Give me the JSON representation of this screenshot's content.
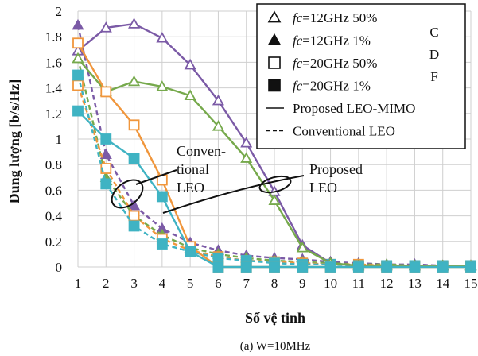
{
  "chart_data": {
    "type": "line",
    "xlabel": "Số vệ tinh",
    "ylabel": "Dung lượng [b/s/Hz]",
    "caption": "(a) W=10MHz",
    "x": [
      1,
      2,
      3,
      4,
      5,
      6,
      7,
      8,
      9,
      10,
      11,
      12,
      13,
      14,
      15
    ],
    "xlim": [
      1,
      15
    ],
    "ylim": [
      0,
      2
    ],
    "yticks": [
      "0",
      "0.2",
      "0.4",
      "0.6",
      "0.8",
      "1",
      "1.2",
      "1.4",
      "1.6",
      "1.8",
      "2"
    ],
    "xticks": [
      "1",
      "2",
      "3",
      "4",
      "5",
      "6",
      "7",
      "8",
      "9",
      "10",
      "11",
      "12",
      "13",
      "14",
      "15"
    ],
    "grid": true,
    "legend_position": "top-right",
    "legend": [
      {
        "label": "fc=12GHz 50%",
        "fc": "fc",
        "rest": "=12GHz 50%",
        "marker": "open-triangle",
        "style": "marker"
      },
      {
        "label": "fc=12GHz 1%",
        "fc": "fc",
        "rest": "=12GHz 1%",
        "marker": "filled-triangle",
        "style": "marker"
      },
      {
        "label": "fc=20GHz 50%",
        "fc": "fc",
        "rest": "=20GHz 50%",
        "marker": "open-square",
        "style": "marker"
      },
      {
        "label": "fc=20GHz 1%",
        "fc": "fc",
        "rest": "=20GHz 1%",
        "marker": "filled-square",
        "style": "marker"
      },
      {
        "label": "Proposed LEO-MIMO",
        "marker": "none",
        "style": "solid"
      },
      {
        "label": "Conventional LEO",
        "marker": "none",
        "style": "dashed"
      }
    ],
    "legend_overlay": [
      "C",
      "D",
      "F"
    ],
    "annotations": {
      "conventional": [
        "Conven-",
        "tional",
        "LEO"
      ],
      "proposed": [
        "Proposed",
        "LEO"
      ]
    },
    "series": [
      {
        "name": "fc=12GHz 50%, Proposed LEO-MIMO",
        "style": "solid",
        "color": "#7b5aa6",
        "marker": "open-triangle",
        "values": [
          1.69,
          1.87,
          1.9,
          1.79,
          1.58,
          1.3,
          0.97,
          0.59,
          0.17,
          0.03,
          0.01,
          0.01,
          0.01,
          0.01,
          0.01
        ]
      },
      {
        "name": "fc=12GHz 1%, Proposed LEO-MIMO",
        "style": "solid",
        "color": "#76a94c",
        "marker": "open-triangle",
        "values": [
          1.63,
          1.37,
          1.45,
          1.41,
          1.34,
          1.1,
          0.85,
          0.52,
          0.15,
          0.03,
          0.01,
          0.01,
          0.01,
          0.01,
          0.01
        ]
      },
      {
        "name": "fc=20GHz 50%, Proposed LEO-MIMO",
        "style": "solid",
        "color": "#f0963c",
        "marker": "open-square",
        "values": [
          1.75,
          1.37,
          1.11,
          0.68,
          0.16,
          0.0,
          0.0,
          0.0,
          0.0,
          0.0,
          0.0,
          0.0,
          0.0,
          0.0,
          0.0
        ]
      },
      {
        "name": "fc=20GHz 1%, Proposed LEO-MIMO",
        "style": "solid",
        "color": "#3fb3c3",
        "marker": "filled-square",
        "values": [
          1.22,
          1.0,
          0.85,
          0.55,
          0.12,
          0.0,
          0.0,
          0.0,
          0.0,
          0.0,
          0.0,
          0.0,
          0.0,
          0.0,
          0.0
        ]
      },
      {
        "name": "fc=12GHz 50%, Conventional LEO",
        "style": "dashed",
        "color": "#7b5aa6",
        "marker": "filled-triangle",
        "values": [
          1.89,
          0.88,
          0.48,
          0.3,
          0.19,
          0.13,
          0.09,
          0.07,
          0.06,
          0.04,
          0.03,
          0.02,
          0.02,
          0.01,
          0.01
        ]
      },
      {
        "name": "fc=12GHz 1%, Conventional LEO",
        "style": "dashed",
        "color": "#76a94c",
        "marker": "filled-triangle",
        "values": [
          1.63,
          0.7,
          0.4,
          0.25,
          0.15,
          0.1,
          0.07,
          0.05,
          0.04,
          0.03,
          0.02,
          0.02,
          0.01,
          0.01,
          0.01
        ]
      },
      {
        "name": "fc=20GHz 50%, Conventional LEO",
        "style": "dashed",
        "color": "#f0963c",
        "marker": "open-square",
        "values": [
          1.42,
          0.77,
          0.4,
          0.22,
          0.13,
          0.08,
          0.05,
          0.04,
          0.03,
          0.02,
          0.02,
          0.01,
          0.01,
          0.01,
          0.01
        ]
      },
      {
        "name": "fc=20GHz 1%, Conventional LEO",
        "style": "dashed",
        "color": "#3fb3c3",
        "marker": "filled-square",
        "values": [
          1.5,
          0.65,
          0.32,
          0.18,
          0.12,
          0.07,
          0.05,
          0.03,
          0.02,
          0.02,
          0.01,
          0.01,
          0.01,
          0.01,
          0.01
        ]
      }
    ]
  }
}
